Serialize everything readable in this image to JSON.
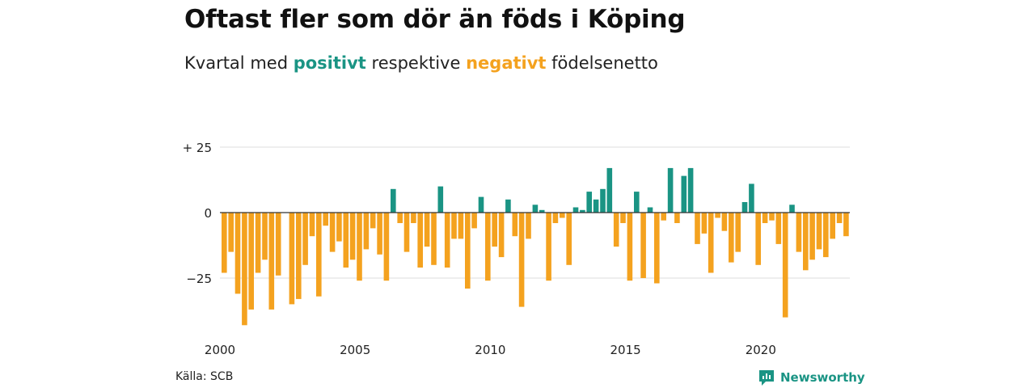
{
  "title": "Oftast fler som dör än föds i Köping",
  "subtitle": {
    "prefix": "Kvartal med",
    "positive_word": "positivt",
    "middle": "respektive",
    "negative_word": "negativt",
    "suffix": "födelsenetto"
  },
  "source": "Källa: SCB",
  "brand": "Newsworthy",
  "colors": {
    "positive": "#1a9484",
    "negative": "#f4a21f",
    "grid": "#dddddd",
    "axis": "#333333"
  },
  "chart_data": {
    "type": "bar",
    "x_start": "2000-Q1",
    "x_tick_labels": [
      "2000",
      "2005",
      "2010",
      "2015",
      "2020"
    ],
    "y_tick_labels": [
      "+ 25",
      "0",
      "−25"
    ],
    "y_ticks": [
      25,
      0,
      -25
    ],
    "ylim": [
      -44,
      28
    ],
    "grid": true,
    "values": [
      -23,
      -15,
      -31,
      -43,
      -37,
      -23,
      -18,
      -37,
      -24,
      0,
      -35,
      -33,
      -20,
      -9,
      -32,
      -5,
      -15,
      -11,
      -21,
      -18,
      -26,
      -14,
      -6,
      -16,
      -26,
      9,
      -4,
      -15,
      -4,
      -21,
      -13,
      -20,
      10,
      -21,
      -10,
      -10,
      -29,
      -6,
      6,
      -26,
      -13,
      -17,
      5,
      -9,
      -36,
      -10,
      3,
      1,
      -26,
      -4,
      -2,
      -20,
      2,
      1,
      8,
      5,
      9,
      17,
      -13,
      -4,
      -26,
      8,
      -25,
      2,
      -27,
      -3,
      17,
      -4,
      14,
      17,
      -12,
      -8,
      -23,
      -2,
      -7,
      -19,
      -15,
      4,
      11,
      -20,
      -4,
      -3,
      -12,
      -40,
      3,
      -15,
      -22,
      -18,
      -14,
      -17,
      -10,
      -4,
      -9
    ]
  }
}
